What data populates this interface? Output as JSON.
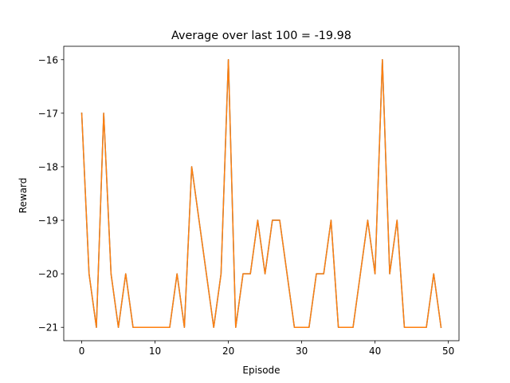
{
  "chart_data": {
    "type": "line",
    "title": "Average over last 100 = -19.98",
    "xlabel": "Episode",
    "ylabel": "Reward",
    "xlim": [
      -2.45,
      51.45
    ],
    "ylim": [
      -21.25,
      -15.75
    ],
    "xticks": [
      0,
      10,
      20,
      30,
      40,
      50
    ],
    "yticks": [
      -21,
      -20,
      -19,
      -18,
      -17,
      -16
    ],
    "x": [
      0,
      1,
      2,
      3,
      4,
      5,
      6,
      7,
      8,
      9,
      10,
      11,
      12,
      13,
      14,
      15,
      16,
      17,
      18,
      19,
      20,
      21,
      22,
      23,
      24,
      25,
      26,
      27,
      28,
      29,
      30,
      31,
      32,
      33,
      34,
      35,
      36,
      37,
      38,
      39,
      40,
      41,
      42,
      43,
      44,
      45,
      46,
      47,
      48,
      49
    ],
    "series": [
      {
        "color": "#1f77b4",
        "values": [
          -17,
          -20,
          -21,
          -17,
          -20,
          -21,
          -20,
          -21,
          -21,
          -21,
          -21,
          -21,
          -21,
          -20,
          -21,
          -18,
          -19,
          -20,
          -21,
          -20,
          -16,
          -21,
          -20,
          -20,
          -19,
          -20,
          -19,
          -19,
          -20,
          -21,
          -21,
          -21,
          -20,
          -20,
          -19,
          -21,
          -21,
          -21,
          -20,
          -19,
          -20,
          -16,
          -20,
          -19,
          -21,
          -21,
          -21,
          -21,
          -20,
          -21
        ]
      },
      {
        "color": "#ff7f0e",
        "values": [
          -17,
          -20,
          -21,
          -17,
          -20,
          -21,
          -20,
          -21,
          -21,
          -21,
          -21,
          -21,
          -21,
          -20,
          -21,
          -18,
          -19,
          -20,
          -21,
          -20,
          -16,
          -21,
          -20,
          -20,
          -19,
          -20,
          -19,
          -19,
          -20,
          -21,
          -21,
          -21,
          -20,
          -20,
          -19,
          -21,
          -21,
          -21,
          -20,
          -19,
          -20,
          -16,
          -20,
          -19,
          -21,
          -21,
          -21,
          -21,
          -20,
          -21
        ]
      }
    ],
    "grid": false,
    "legend": "none"
  }
}
